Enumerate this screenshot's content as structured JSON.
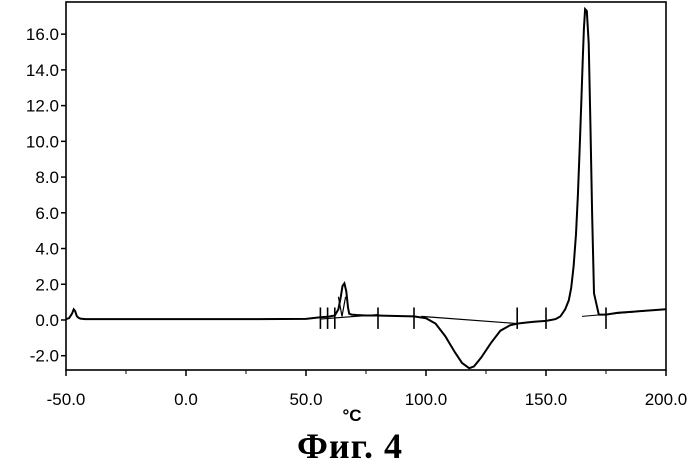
{
  "figure": {
    "caption": "Фиг.   4"
  },
  "chart_data": {
    "type": "line",
    "title": "",
    "xlabel": "°C",
    "ylabel": "",
    "xlim": [
      -50,
      200
    ],
    "ylim": [
      -2.8,
      17.8
    ],
    "x_ticks": [
      -50,
      0,
      50,
      100,
      150,
      200
    ],
    "x_tick_labels": [
      "-50.0",
      "0.0",
      "50.0",
      "100.0",
      "150.0",
      "200.0"
    ],
    "y_ticks": [
      -2,
      0,
      2,
      4,
      6,
      8,
      10,
      12,
      14,
      16
    ],
    "y_tick_labels": [
      "-2.0",
      "0.0",
      "2.0",
      "4.0",
      "6.0",
      "8.0",
      "10.0",
      "12.0",
      "14.0",
      "16.0"
    ],
    "grid": false,
    "series": [
      {
        "color": "#000000",
        "x": [
          -50,
          -48.7,
          -47.5,
          -46.8,
          -46.2,
          -45.5,
          -44.8,
          -44,
          -42,
          -38,
          -30,
          -10,
          10,
          30,
          50,
          56,
          59,
          62,
          63.5,
          64.5,
          65.2,
          66,
          66.8,
          67.5,
          68,
          69,
          71,
          75,
          80,
          90,
          95,
          100,
          104,
          108,
          112,
          115,
          118,
          120,
          123,
          127,
          131,
          135,
          138,
          141,
          145,
          150,
          152,
          154,
          156,
          158,
          159.5,
          160.5,
          161.5,
          162.5,
          163.3,
          164,
          164.8,
          165.3,
          165.8,
          166.3,
          167,
          167.8,
          168.5,
          169.2,
          170,
          172,
          175,
          180,
          190,
          200
        ],
        "y": [
          0.05,
          0.1,
          0.35,
          0.6,
          0.5,
          0.22,
          0.12,
          0.08,
          0.05,
          0.05,
          0.05,
          0.05,
          0.05,
          0.05,
          0.06,
          0.15,
          0.18,
          0.25,
          0.6,
          1.3,
          1.9,
          2.05,
          1.6,
          0.7,
          0.35,
          0.3,
          0.28,
          0.25,
          0.25,
          0.22,
          0.2,
          0.1,
          -0.2,
          -0.9,
          -1.8,
          -2.4,
          -2.7,
          -2.6,
          -2.1,
          -1.3,
          -0.6,
          -0.3,
          -0.2,
          -0.15,
          -0.1,
          -0.05,
          0.0,
          0.05,
          0.2,
          0.6,
          1.1,
          1.8,
          3.0,
          4.8,
          7.0,
          9.5,
          12.5,
          14.5,
          16.3,
          17.4,
          17.3,
          15.5,
          11.0,
          6.0,
          1.5,
          0.3,
          0.3,
          0.4,
          0.5,
          0.6
        ]
      }
    ]
  }
}
